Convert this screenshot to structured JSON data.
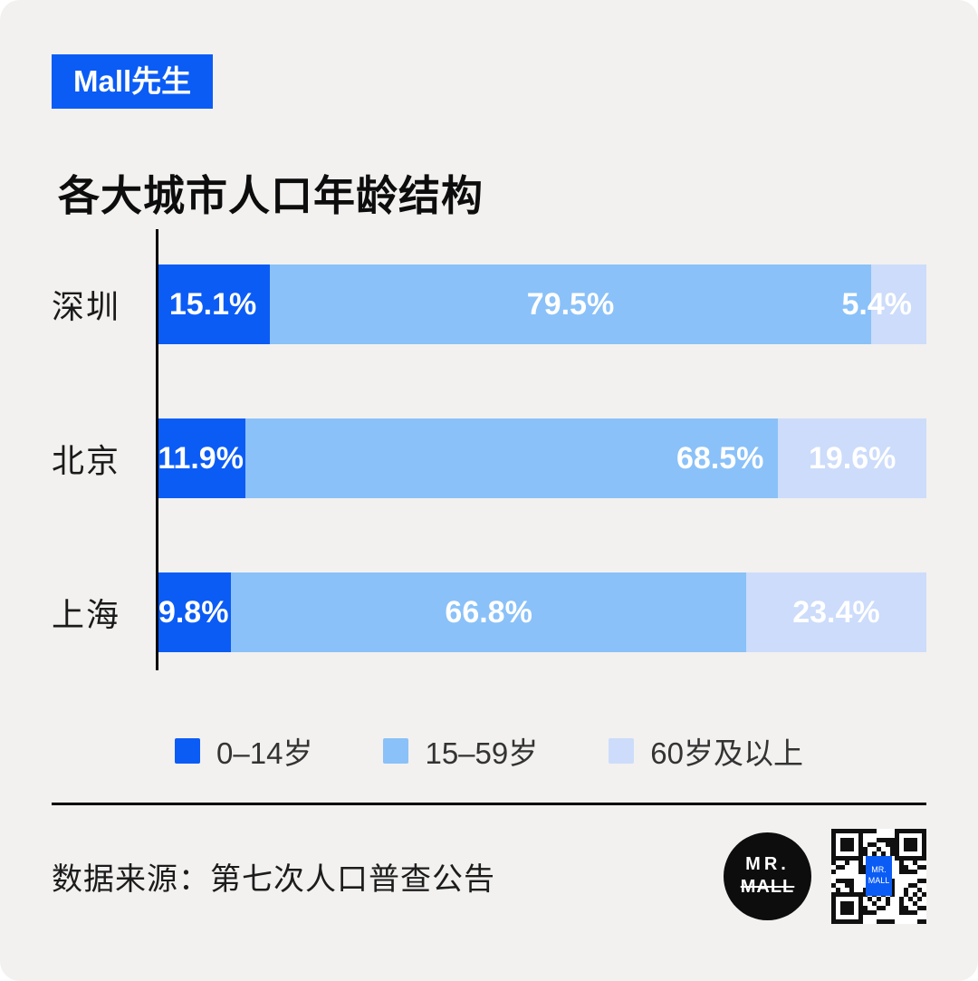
{
  "badge": {
    "label": "Mall先生"
  },
  "title": "各大城市人口年龄结构",
  "chart_data": {
    "type": "bar",
    "orientation": "horizontal",
    "stacked": true,
    "title": "各大城市人口年龄结构",
    "categories": [
      "深圳",
      "北京",
      "上海"
    ],
    "series": [
      {
        "name": "0–14岁",
        "color": "#0B5CF5",
        "values": [
          15.1,
          11.9,
          9.8
        ]
      },
      {
        "name": "15–59岁",
        "color": "#8AC1F8",
        "values": [
          79.5,
          68.5,
          66.8
        ]
      },
      {
        "name": "60岁及以上",
        "color": "#CCDCFA",
        "values": [
          5.4,
          19.6,
          23.4
        ]
      }
    ],
    "value_format": "percent",
    "xlim": [
      0,
      100
    ],
    "grid": false,
    "legend_position": "bottom",
    "label_align": [
      [
        "center",
        "center",
        "end"
      ],
      [
        "center",
        "end",
        "center"
      ],
      [
        "center",
        "center",
        "center"
      ]
    ]
  },
  "footer": {
    "source": "数据来源：第七次人口普查公告",
    "logo_line1": "MR.",
    "logo_line2": "MALL",
    "qr_center_line1": "MR.",
    "qr_center_line2": "MALL"
  },
  "colors": {
    "accent_blue": "#0B5CF5",
    "light_blue": "#8AC1F8",
    "pale_blue": "#CCDCFA",
    "background": "#F2F1EF"
  }
}
